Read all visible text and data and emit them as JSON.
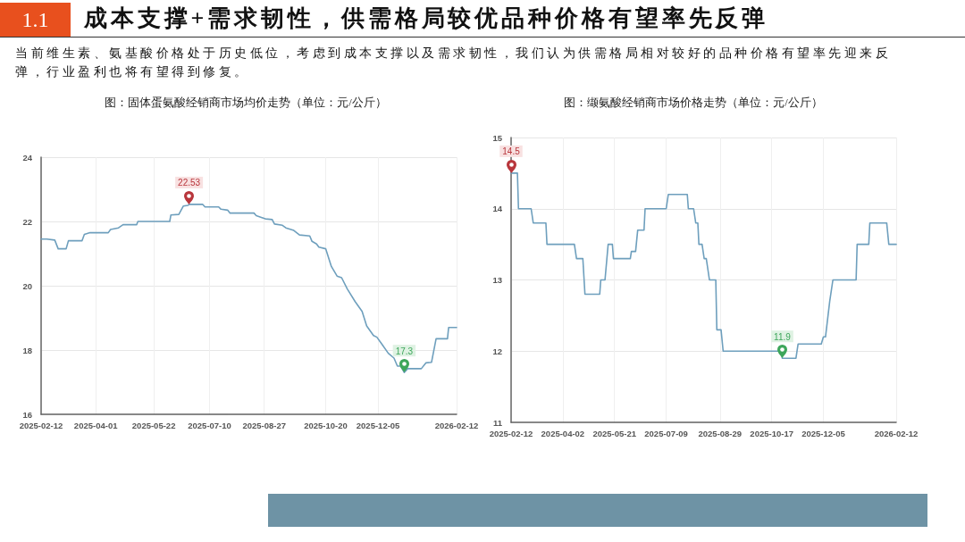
{
  "chart_data": [
    {
      "type": "other",
      "title": "成本支撑+需求韧性，供需格局较优品种价格有望率先反弹",
      "subtitle": "当前维生素、氨基酸价格处于历史低位，考虑到成本支撑以及需求韧性，我们认为供需格局相对较好的品种价格有望率先迎来反弹，行业盈利也将有望得到修复。",
      "annotations": [
        "1.1"
      ]
    },
    {
      "type": "line",
      "title": "图：固体蛋氨酸经销商市场均价走势（单位：元/公斤）",
      "x": [
        "2025-02-12",
        "2025-02-17",
        "2025-02-24",
        "2025-02-27",
        "2025-03-06",
        "2025-03-08",
        "2025-03-20",
        "2025-03-22",
        "2025-03-27",
        "2025-04-12",
        "2025-04-14",
        "2025-04-21",
        "2025-04-25",
        "2025-05-07",
        "2025-05-08",
        "2025-06-05",
        "2025-06-06",
        "2025-06-13",
        "2025-06-17",
        "2025-06-21",
        "2025-06-22",
        "2025-07-04",
        "2025-07-06",
        "2025-07-18",
        "2025-07-20",
        "2025-07-26",
        "2025-07-28",
        "2025-08-18",
        "2025-08-20",
        "2025-08-25",
        "2025-08-28",
        "2025-09-03",
        "2025-09-05",
        "2025-09-12",
        "2025-09-15",
        "2025-09-22",
        "2025-09-27",
        "2025-10-06",
        "2025-10-08",
        "2025-10-12",
        "2025-10-14",
        "2025-10-20",
        "2025-10-25",
        "2025-10-30",
        "2025-11-03",
        "2025-11-08",
        "2025-11-15",
        "2025-11-21",
        "2025-11-25",
        "2025-12-01",
        "2025-12-04",
        "2025-12-08",
        "2025-12-14",
        "2025-12-19",
        "2025-12-22",
        "2025-12-25",
        "2025-12-28",
        "2025-12-31",
        "2026-01-12",
        "2026-01-16",
        "2026-01-21",
        "2026-01-25",
        "2026-02-04",
        "2026-02-05",
        "2026-02-12"
      ],
      "series": [
        {
          "color": "#6e9fbd",
          "values": [
            21.45,
            21.45,
            21.42,
            21.15,
            21.15,
            21.4,
            21.4,
            21.6,
            21.65,
            21.65,
            21.75,
            21.8,
            21.9,
            21.9,
            22.0,
            22.0,
            22.2,
            22.22,
            22.48,
            22.5,
            22.53,
            22.53,
            22.45,
            22.45,
            22.38,
            22.35,
            22.26,
            22.26,
            22.18,
            22.12,
            22.08,
            22.06,
            21.92,
            21.88,
            21.8,
            21.72,
            21.58,
            21.55,
            21.38,
            21.3,
            21.2,
            21.15,
            20.6,
            20.3,
            20.25,
            19.9,
            19.5,
            19.2,
            18.75,
            18.45,
            18.4,
            18.2,
            17.9,
            17.75,
            17.5,
            17.5,
            17.3,
            17.42,
            17.42,
            17.6,
            17.62,
            18.35,
            18.35,
            18.7,
            18.7
          ]
        }
      ],
      "xlim": [
        "2025-02-12",
        "2026-02-12"
      ],
      "xticks": [
        "2025-02-12",
        "2025-04-01",
        "2025-05-22",
        "2025-07-10",
        "2025-08-27",
        "2025-10-20",
        "2025-12-05",
        "2026-02-12"
      ],
      "ylim": [
        16,
        24
      ],
      "yticks": [
        16,
        18,
        20,
        22,
        24
      ],
      "grid": true,
      "annotations": [
        {
          "text": "22.53",
          "x": "2025-06-22",
          "y": 22.53
        },
        {
          "text": "17.3",
          "x": "2025-12-28",
          "y": 17.3
        }
      ]
    },
    {
      "type": "line",
      "title": "图：缬氨酸经销商市场价格走势（单位：元/公斤）",
      "x": [
        "2025-02-12",
        "2025-02-18",
        "2025-02-19",
        "2025-03-03",
        "2025-03-05",
        "2025-03-17",
        "2025-03-18",
        "2025-04-13",
        "2025-04-15",
        "2025-04-21",
        "2025-04-23",
        "2025-05-07",
        "2025-05-08",
        "2025-05-12",
        "2025-05-15",
        "2025-05-19",
        "2025-05-20",
        "2025-06-05",
        "2025-06-06",
        "2025-06-10",
        "2025-06-12",
        "2025-06-18",
        "2025-06-19",
        "2025-07-09",
        "2025-07-11",
        "2025-07-29",
        "2025-07-30",
        "2025-08-04",
        "2025-08-06",
        "2025-08-08",
        "2025-08-09",
        "2025-08-12",
        "2025-08-14",
        "2025-08-16",
        "2025-08-19",
        "2025-08-25",
        "2025-08-26",
        "2025-08-30",
        "2025-09-01",
        "2025-10-26",
        "2025-10-27",
        "2025-11-09",
        "2025-11-11",
        "2025-12-03",
        "2025-12-05",
        "2025-12-07",
        "2025-12-11",
        "2025-12-14",
        "2026-01-05",
        "2026-01-06",
        "2026-01-17",
        "2026-01-18",
        "2026-02-03",
        "2026-02-05",
        "2026-02-12"
      ],
      "series": [
        {
          "color": "#6e9fbd",
          "values": [
            14.5,
            14.5,
            14.0,
            14.0,
            13.8,
            13.8,
            13.5,
            13.5,
            13.3,
            13.3,
            12.8,
            12.8,
            13.0,
            13.0,
            13.5,
            13.5,
            13.3,
            13.3,
            13.4,
            13.4,
            13.7,
            13.7,
            14.0,
            14.0,
            14.2,
            14.2,
            14.0,
            14.0,
            13.8,
            13.8,
            13.5,
            13.5,
            13.3,
            13.3,
            13.0,
            13.0,
            12.3,
            12.3,
            12.0,
            12.0,
            11.9,
            11.9,
            12.1,
            12.1,
            12.2,
            12.2,
            12.7,
            13.0,
            13.0,
            13.5,
            13.5,
            13.8,
            13.8,
            13.5,
            13.5
          ]
        }
      ],
      "xlim": [
        "2025-02-12",
        "2026-02-12"
      ],
      "xticks": [
        "2025-02-12",
        "2025-04-02",
        "2025-05-21",
        "2025-07-09",
        "2025-08-29",
        "2025-10-17",
        "2025-12-05",
        "2026-02-12"
      ],
      "ylim": [
        11,
        15
      ],
      "yticks": [
        11,
        12,
        13,
        14,
        15
      ],
      "grid": true,
      "annotations": [
        {
          "text": "14.5",
          "x": "2025-02-12",
          "y": 14.5
        },
        {
          "text": "11.9",
          "x": "2025-10-27",
          "y": 11.9
        }
      ]
    }
  ]
}
